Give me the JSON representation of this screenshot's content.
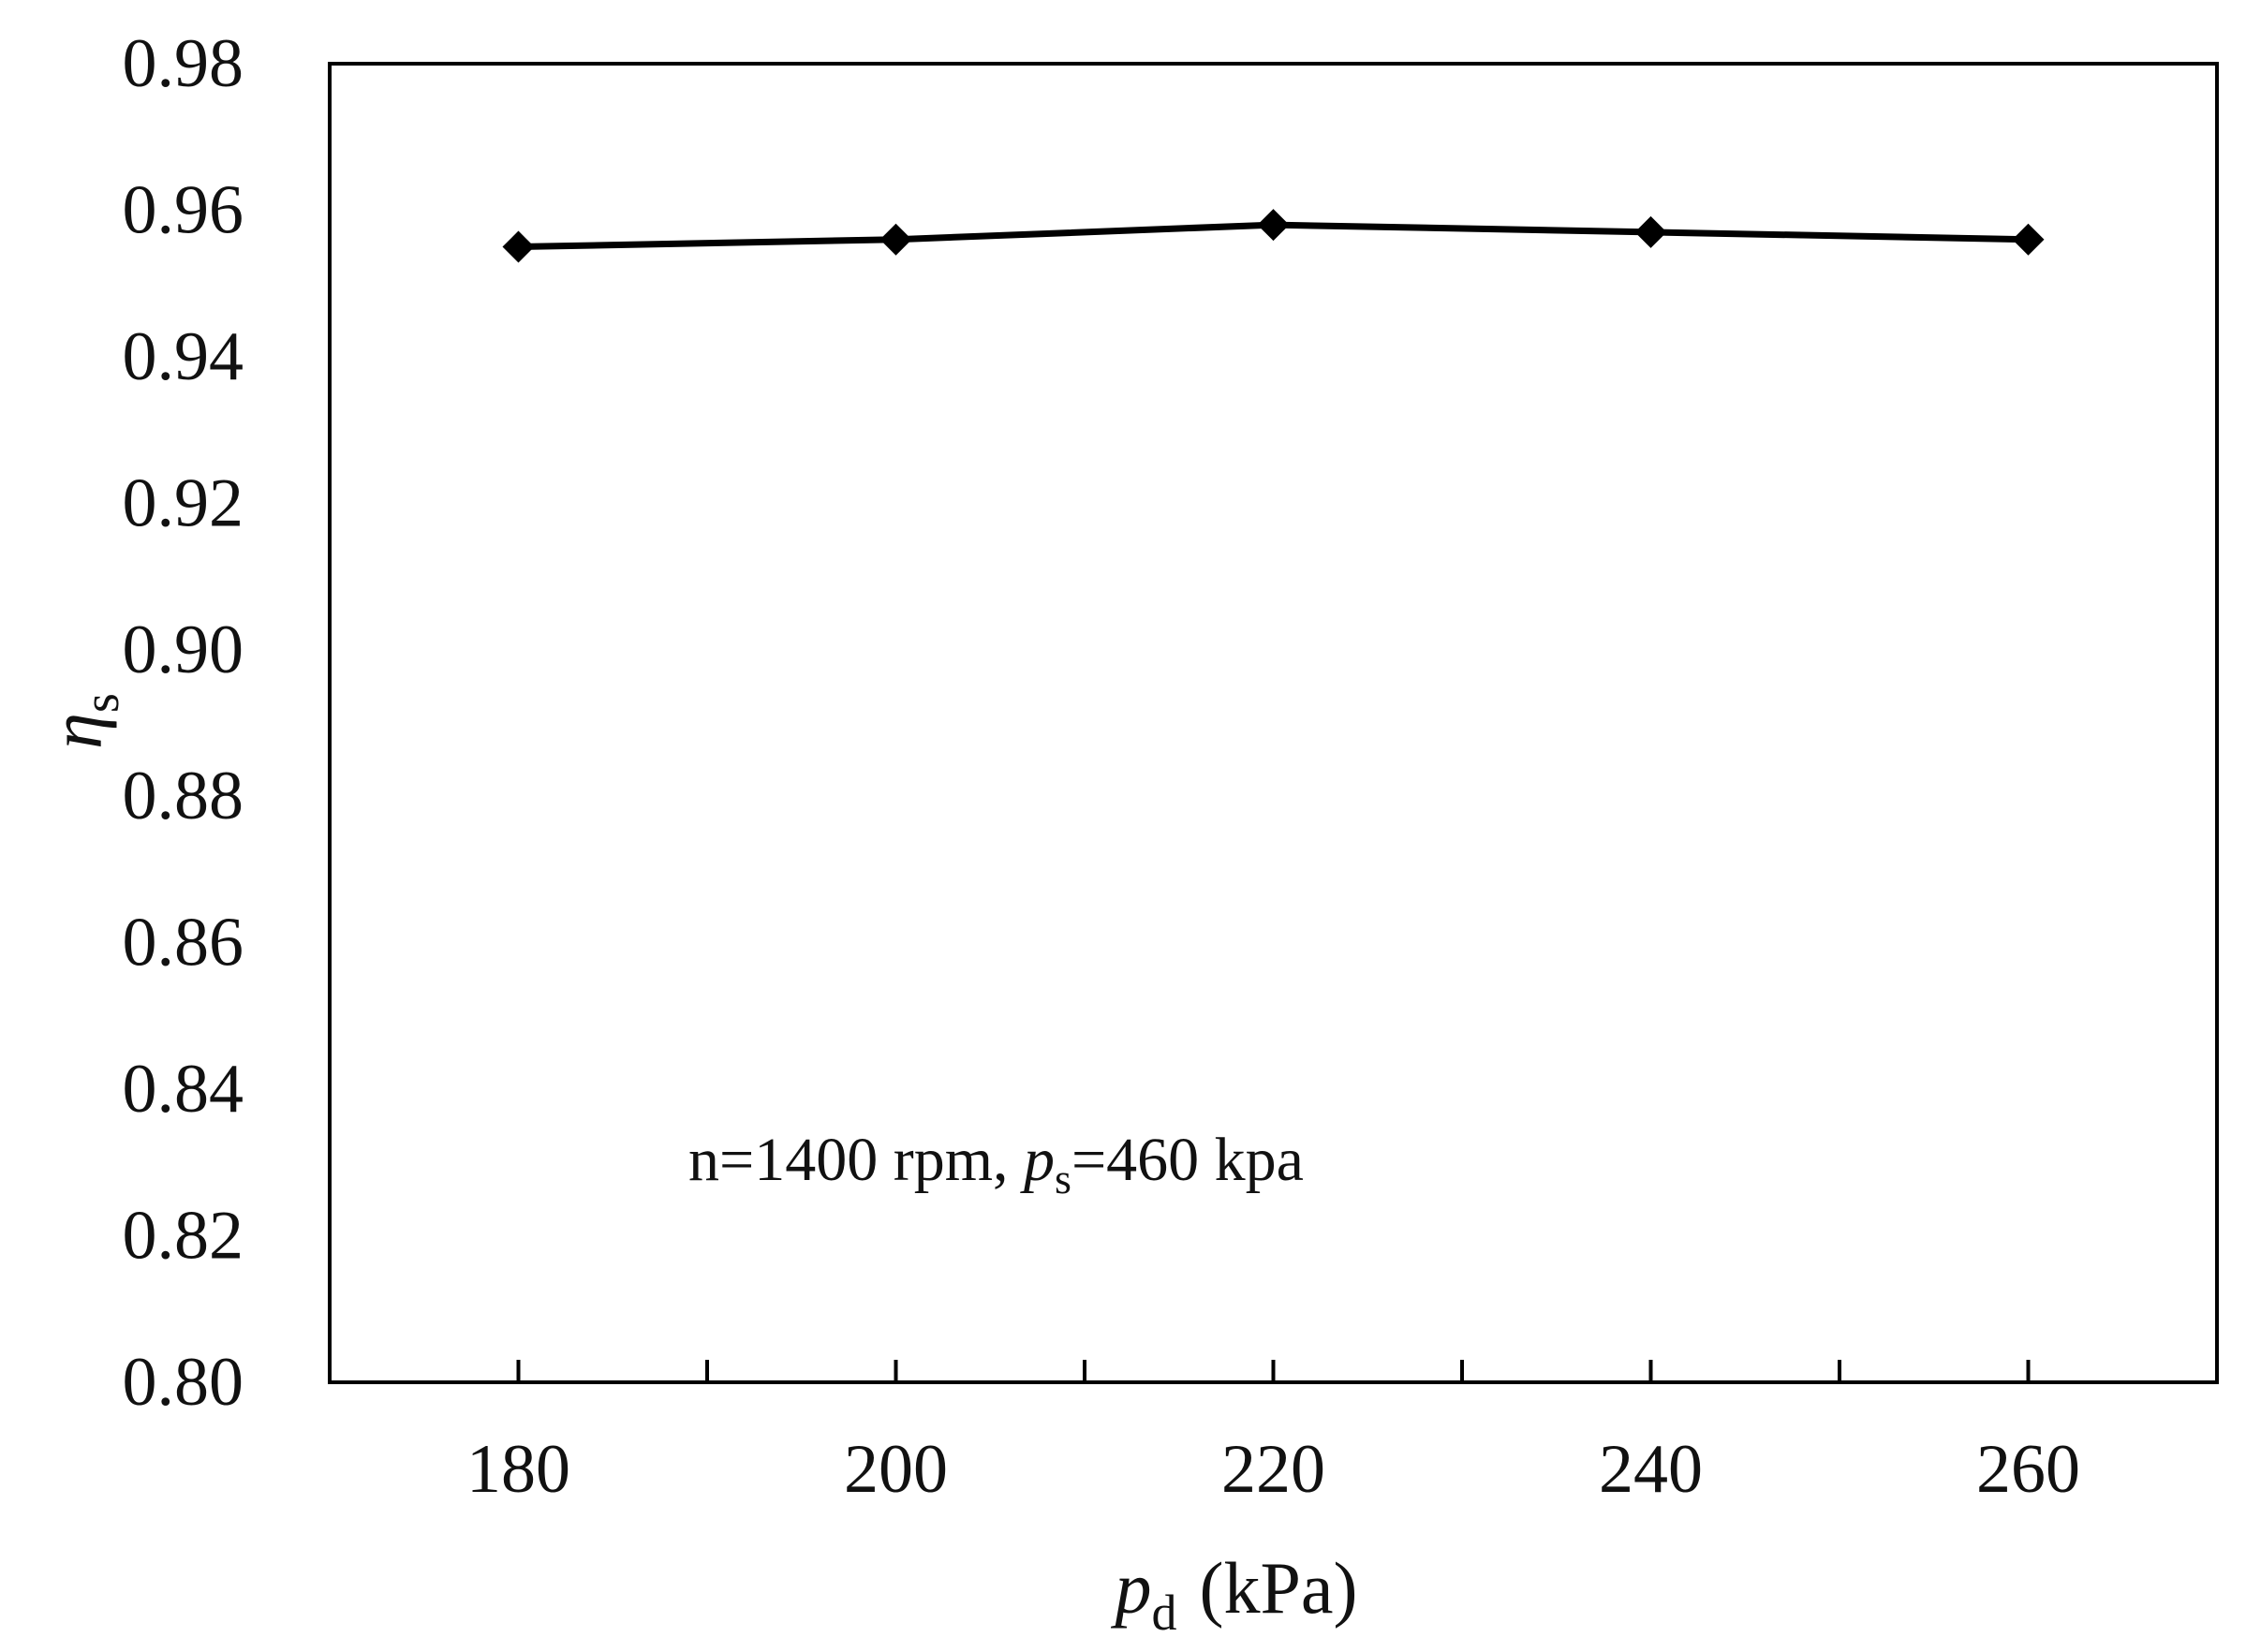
{
  "chart_data": {
    "type": "line",
    "x": [
      180,
      200,
      220,
      240,
      260
    ],
    "series": [
      {
        "values": [
          0.955,
          0.956,
          0.958,
          0.957,
          0.956
        ],
        "color": "#000000",
        "marker": "diamond"
      }
    ],
    "xlim": [
      170,
      270
    ],
    "ylim": [
      0.8,
      0.98
    ],
    "x_ticks": [
      180,
      200,
      220,
      240,
      260
    ],
    "x_minor_ticks": [
      190,
      210,
      230,
      250
    ],
    "y_ticks": [
      0.8,
      0.82,
      0.84,
      0.86,
      0.88,
      0.9,
      0.92,
      0.94,
      0.96,
      0.98
    ],
    "x_tick_labels": [
      "180",
      "200",
      "220",
      "240",
      "260"
    ],
    "y_tick_labels": [
      "0.80",
      "0.82",
      "0.84",
      "0.86",
      "0.88",
      "0.90",
      "0.92",
      "0.94",
      "0.96",
      "0.98"
    ],
    "xlabel": {
      "symbol": "p",
      "subscript": "d",
      "unit": "(kPa)"
    },
    "ylabel": {
      "symbol": "η",
      "subscript": "s"
    },
    "annotation": {
      "prefix": "n=1400 rpm, ",
      "symbol": "p",
      "subscript": "s",
      "suffix": "=460 kpa"
    },
    "grid": false,
    "legend": "none"
  }
}
